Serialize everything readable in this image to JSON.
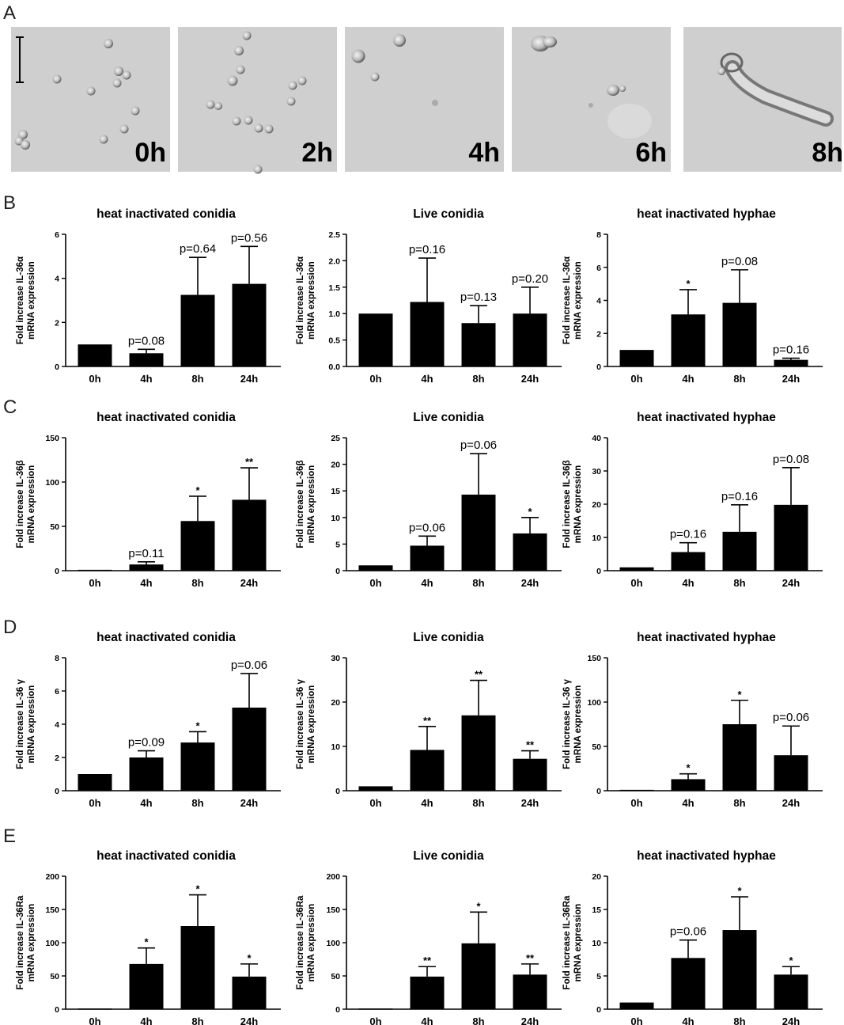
{
  "panel_letters": [
    "A",
    "B",
    "C",
    "D",
    "E"
  ],
  "micrographs": [
    {
      "label": "0h"
    },
    {
      "label": "2h"
    },
    {
      "label": "4h"
    },
    {
      "label": "6h"
    },
    {
      "label": "8h"
    }
  ],
  "colors": {
    "bar": "#000000",
    "background": "#ffffff",
    "micro_bg": "#cfcfcf"
  },
  "chart_data": [
    {
      "type": "bar",
      "title": "heat inactivated conidia",
      "ylabel": [
        "Fold increase IL-36α",
        "mRNA expression"
      ],
      "categories": [
        "0h",
        "4h",
        "8h",
        "24h"
      ],
      "values": [
        1.0,
        0.6,
        3.25,
        3.75
      ],
      "errors": [
        0,
        0.18,
        1.7,
        1.7
      ],
      "annotations": [
        "",
        "p=0.08",
        "p=0.64",
        "p=0.56"
      ],
      "ylim": [
        0,
        6
      ],
      "yticks": [
        0,
        2,
        4,
        6
      ],
      "tick_labels": [
        "0",
        "2",
        "4",
        "6"
      ]
    },
    {
      "type": "bar",
      "title": "Live conidia",
      "ylabel": [
        "Fold increase IL-36α",
        "mRNA expression"
      ],
      "categories": [
        "0h",
        "4h",
        "8h",
        "24h"
      ],
      "values": [
        1.0,
        1.22,
        0.82,
        1.0
      ],
      "errors": [
        0,
        0.83,
        0.33,
        0.5
      ],
      "annotations": [
        "",
        "p=0.16",
        "p=0.13",
        "p=0.20"
      ],
      "ylim": [
        0,
        2.5
      ],
      "yticks": [
        0,
        0.5,
        1.0,
        1.5,
        2.0,
        2.5
      ],
      "tick_labels": [
        "0.0",
        "0.5",
        "1.0",
        "1.5",
        "2.0",
        "2.5"
      ]
    },
    {
      "type": "bar",
      "title": "heat inactivated hyphae",
      "ylabel": [
        "Fold increase IL-36α",
        "mRNA expression"
      ],
      "categories": [
        "0h",
        "4h",
        "8h",
        "24h"
      ],
      "values": [
        1.0,
        3.15,
        3.85,
        0.4
      ],
      "errors": [
        0,
        1.5,
        2.0,
        0.1
      ],
      "annotations": [
        "",
        "*",
        "p=0.08",
        "p=0.16"
      ],
      "ylim": [
        0,
        8
      ],
      "yticks": [
        0,
        2,
        4,
        6,
        8
      ],
      "tick_labels": [
        "0",
        "2",
        "4",
        "6",
        "8"
      ]
    },
    {
      "type": "bar",
      "title": "heat inactivated conidia",
      "ylabel": [
        "Fold increase IL-36β",
        "mRNA expression"
      ],
      "categories": [
        "0h",
        "4h",
        "8h",
        "24h"
      ],
      "values": [
        1,
        7,
        56,
        80
      ],
      "errors": [
        0,
        3,
        28,
        36
      ],
      "annotations": [
        "",
        "p=0.11",
        "*",
        "**"
      ],
      "ylim": [
        0,
        150
      ],
      "yticks": [
        0,
        50,
        100,
        150
      ],
      "tick_labels": [
        "0",
        "50",
        "100",
        "150"
      ]
    },
    {
      "type": "bar",
      "title": "Live conidia",
      "ylabel": [
        "Fold increase IL-36β",
        "mRNA expression"
      ],
      "categories": [
        "0h",
        "4h",
        "8h",
        "24h"
      ],
      "values": [
        1.0,
        4.7,
        14.3,
        7.0
      ],
      "errors": [
        0,
        1.8,
        7.7,
        3.0
      ],
      "annotations": [
        "",
        "p=0.06",
        "p=0.06",
        "*"
      ],
      "ylim": [
        0,
        25
      ],
      "yticks": [
        0,
        5,
        10,
        15,
        20,
        25
      ],
      "tick_labels": [
        "0",
        "5",
        "10",
        "15",
        "20",
        "25"
      ]
    },
    {
      "type": "bar",
      "title": "heat inactivated hyphae",
      "ylabel": [
        "Fold increase IL-36β",
        "mRNA expression"
      ],
      "categories": [
        "0h",
        "4h",
        "8h",
        "24h"
      ],
      "values": [
        1,
        5.6,
        11.7,
        19.8
      ],
      "errors": [
        0,
        2.8,
        8.1,
        11.2
      ],
      "annotations": [
        "",
        "p=0.16",
        "p=0.16",
        "p=0.08"
      ],
      "ylim": [
        0,
        40
      ],
      "yticks": [
        0,
        10,
        20,
        30,
        40
      ],
      "tick_labels": [
        "0",
        "10",
        "20",
        "30",
        "40"
      ]
    },
    {
      "type": "bar",
      "title": "heat inactivated conidia",
      "ylabel": [
        "Fold increase IL-36 γ",
        "mRNA expression"
      ],
      "categories": [
        "0h",
        "4h",
        "8h",
        "24h"
      ],
      "values": [
        1.0,
        2.0,
        2.9,
        5.0
      ],
      "errors": [
        0,
        0.4,
        0.65,
        2.05
      ],
      "annotations": [
        "",
        "p=0.09",
        "*",
        "p=0.06"
      ],
      "ylim": [
        0,
        8
      ],
      "yticks": [
        0,
        2,
        4,
        6,
        8
      ],
      "tick_labels": [
        "0",
        "2",
        "4",
        "6",
        "8"
      ]
    },
    {
      "type": "bar",
      "title": "Live conidia",
      "ylabel": [
        "Fold increase IL-36 γ",
        "mRNA expression"
      ],
      "categories": [
        "0h",
        "4h",
        "8h",
        "24h"
      ],
      "values": [
        1.0,
        9.2,
        17.0,
        7.2
      ],
      "errors": [
        0,
        5.3,
        7.9,
        1.8
      ],
      "annotations": [
        "",
        "**",
        "**",
        "**"
      ],
      "ylim": [
        0,
        30
      ],
      "yticks": [
        0,
        10,
        20,
        30
      ],
      "tick_labels": [
        "0",
        "10",
        "20",
        "30"
      ]
    },
    {
      "type": "bar",
      "title": "heat inactivated hyphae",
      "ylabel": [
        "Fold increase IL-36 γ",
        "mRNA expression"
      ],
      "categories": [
        "0h",
        "4h",
        "8h",
        "24h"
      ],
      "values": [
        1,
        13,
        75,
        40
      ],
      "errors": [
        0,
        6,
        27,
        33
      ],
      "annotations": [
        "",
        "*",
        "*",
        "p=0.06"
      ],
      "ylim": [
        0,
        150
      ],
      "yticks": [
        0,
        50,
        100,
        150
      ],
      "tick_labels": [
        "0",
        "50",
        "100",
        "150"
      ]
    },
    {
      "type": "bar",
      "title": "heat inactivated conidia",
      "ylabel": [
        "Fold increase IL-36Ra",
        "mRNA expression"
      ],
      "categories": [
        "0h",
        "4h",
        "8h",
        "24h"
      ],
      "values": [
        1,
        68,
        125,
        49
      ],
      "errors": [
        0,
        24,
        47,
        19
      ],
      "annotations": [
        "",
        "*",
        "*",
        "*"
      ],
      "ylim": [
        0,
        200
      ],
      "yticks": [
        0,
        50,
        100,
        150,
        200
      ],
      "tick_labels": [
        "0",
        "50",
        "100",
        "150",
        "200"
      ]
    },
    {
      "type": "bar",
      "title": "Live conidia",
      "ylabel": [
        "Fold increase IL-36Ra",
        "mRNA expression"
      ],
      "categories": [
        "0h",
        "4h",
        "8h",
        "24h"
      ],
      "values": [
        1,
        49,
        99,
        52
      ],
      "errors": [
        0,
        15,
        47,
        16
      ],
      "annotations": [
        "",
        "**",
        "*",
        "**"
      ],
      "ylim": [
        0,
        200
      ],
      "yticks": [
        0,
        50,
        100,
        150,
        200
      ],
      "tick_labels": [
        "0",
        "50",
        "100",
        "150",
        "200"
      ]
    },
    {
      "type": "bar",
      "title": "heat inactivated hyphae",
      "ylabel": [
        "Fold increase IL-36Ra",
        "mRNA expression"
      ],
      "categories": [
        "0h",
        "4h",
        "8h",
        "24h"
      ],
      "values": [
        1.0,
        7.7,
        11.9,
        5.2
      ],
      "errors": [
        0,
        2.7,
        5.0,
        1.2
      ],
      "annotations": [
        "",
        "p=0.06",
        "*",
        "*"
      ],
      "ylim": [
        0,
        20
      ],
      "yticks": [
        0,
        5,
        10,
        15,
        20
      ],
      "tick_labels": [
        "0",
        "5",
        "10",
        "15",
        "20"
      ]
    }
  ]
}
